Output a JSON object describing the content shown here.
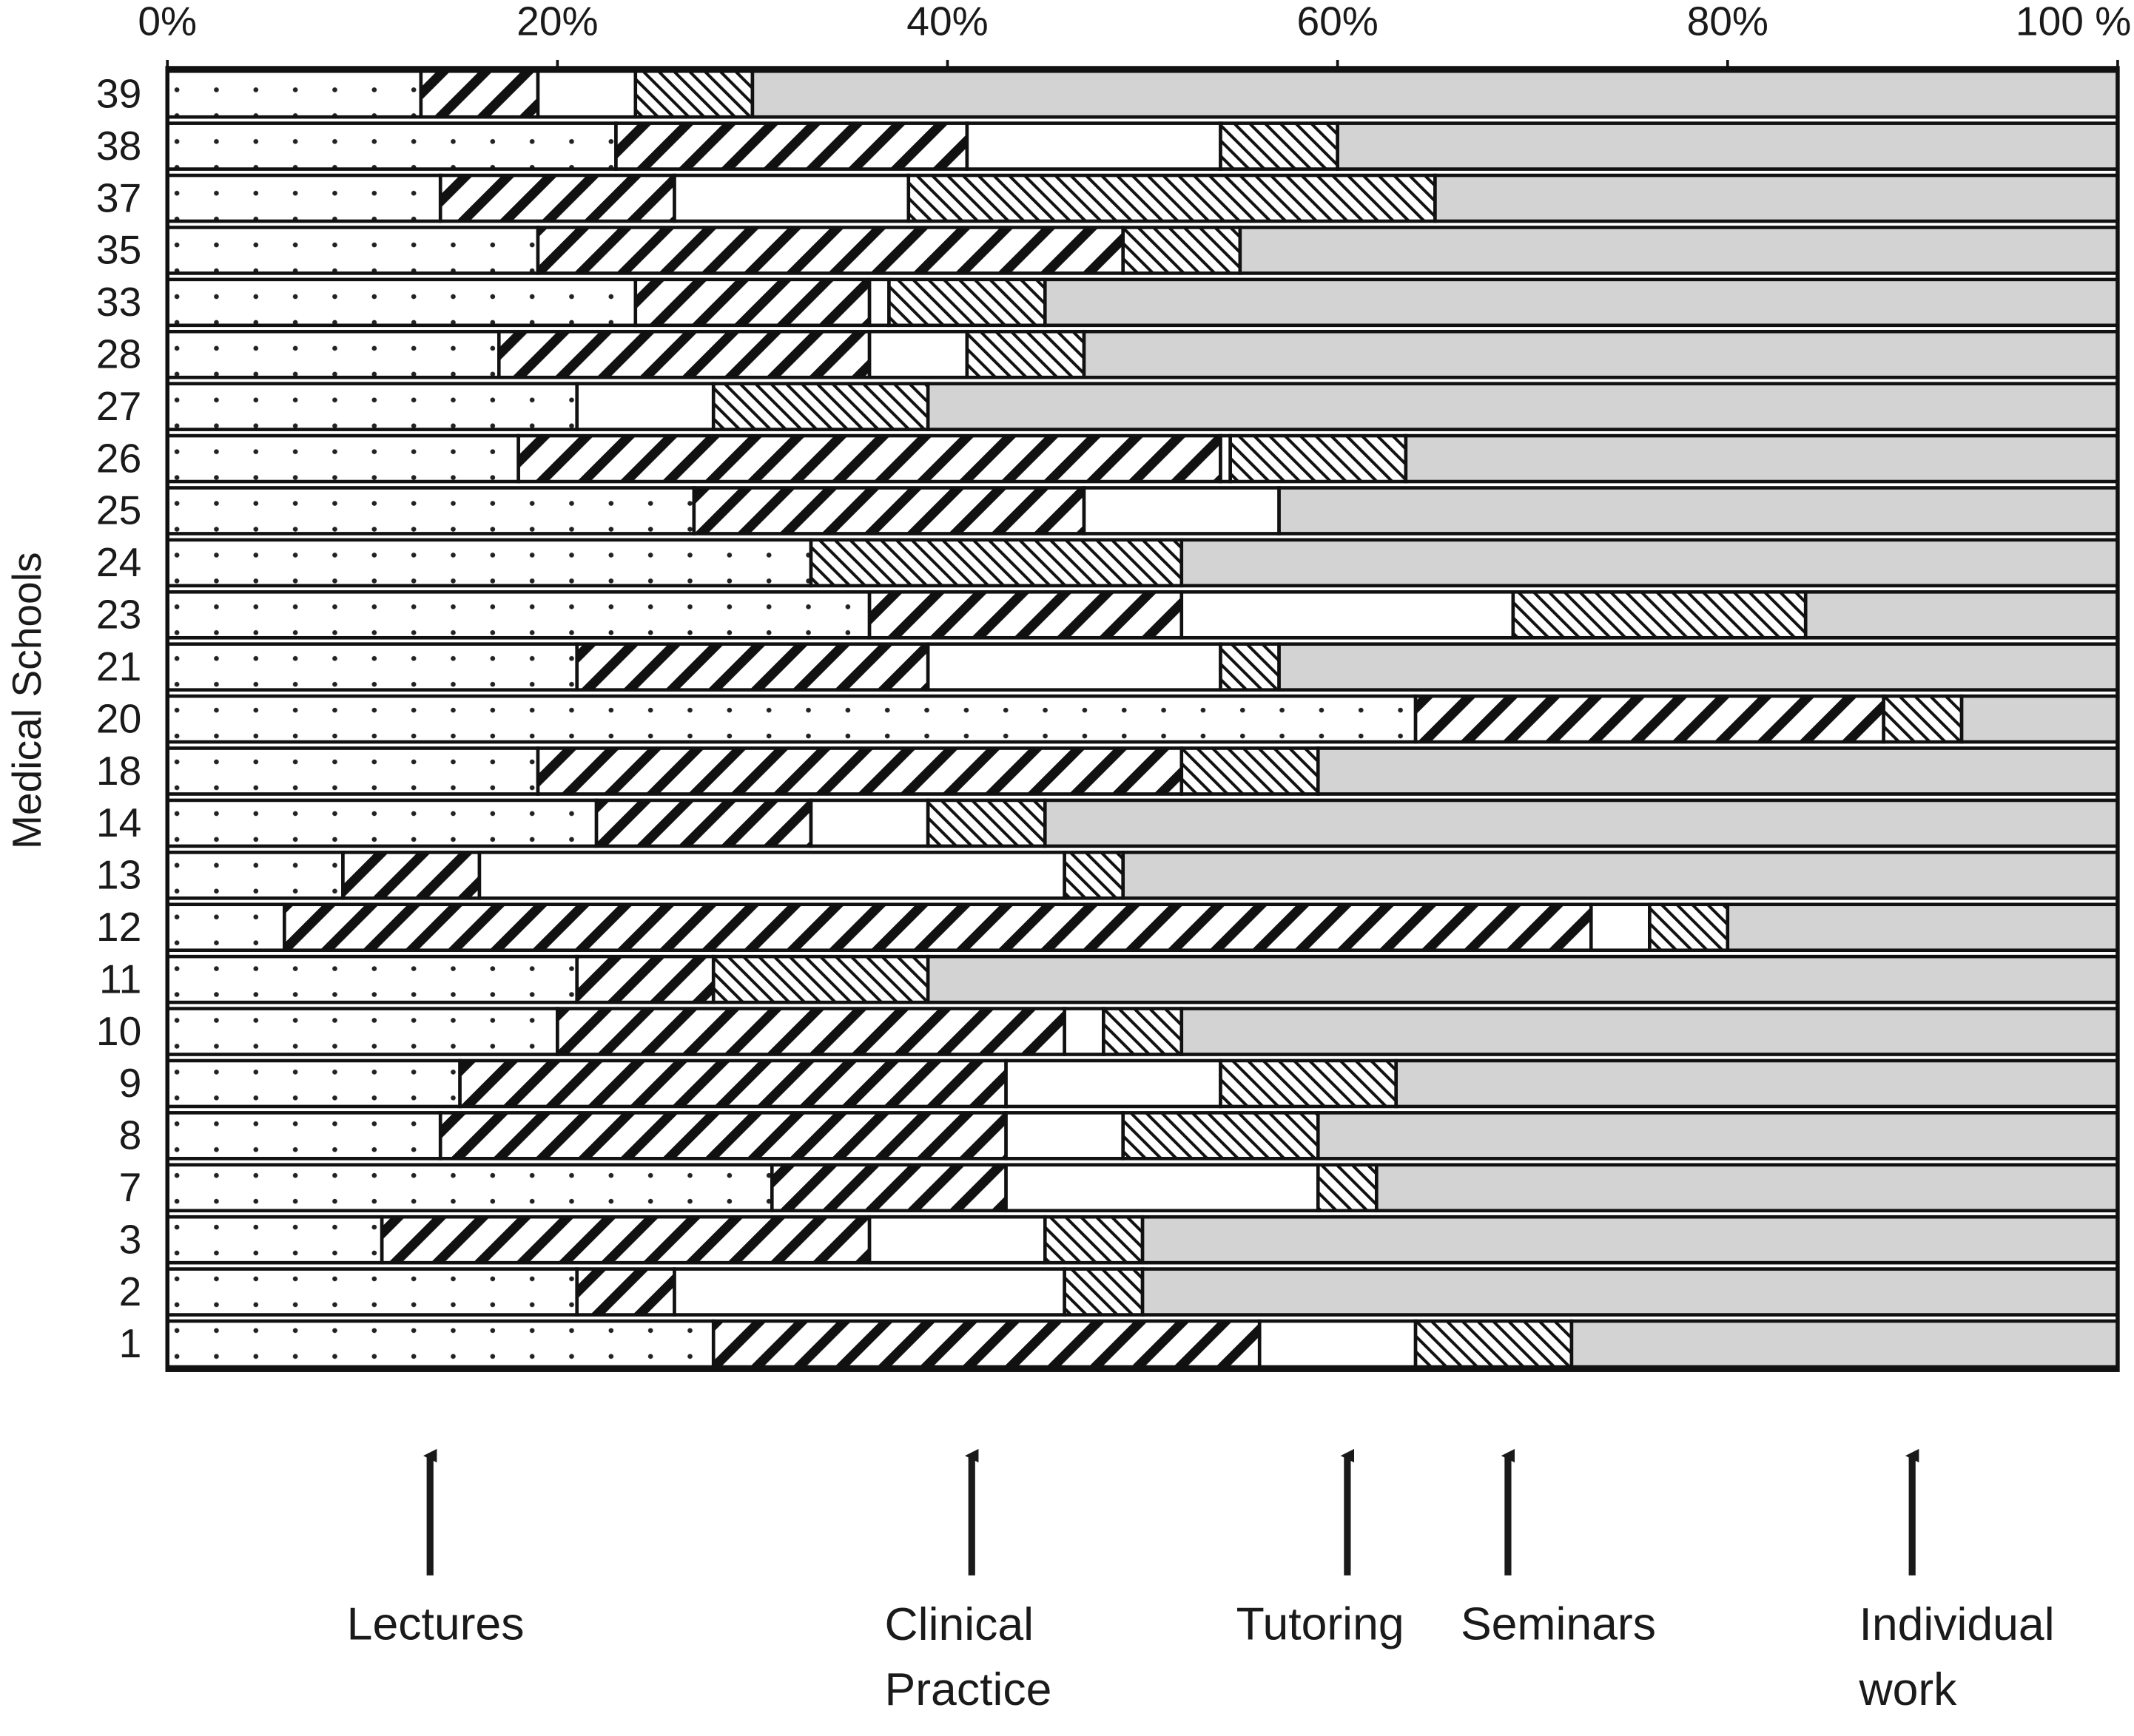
{
  "chart_data": {
    "type": "stacked-bar-horizontal",
    "y_label": "Medical Schools",
    "categories": [
      "1",
      "2",
      "3",
      "7",
      "8",
      "9",
      "10",
      "11",
      "12",
      "13",
      "14",
      "18",
      "20",
      "21",
      "23",
      "24",
      "25",
      "26",
      "27",
      "28",
      "33",
      "35",
      "37",
      "38",
      "39"
    ],
    "series": [
      {
        "name": "Lectures",
        "color": "#ffffff",
        "pattern": "dots",
        "values": [
          28,
          21,
          11,
          31,
          14,
          15,
          20,
          21,
          6,
          9,
          22,
          19,
          64,
          21,
          36,
          33,
          27,
          18,
          21,
          17,
          24,
          19,
          14,
          23,
          13
        ]
      },
      {
        "name": "Clinical Practice",
        "color": "#ffffff",
        "pattern": "wide-diagonal",
        "values": [
          28,
          5,
          25,
          12,
          29,
          28,
          26,
          7,
          67,
          7,
          11,
          33,
          24,
          18,
          16,
          0,
          20,
          36,
          0,
          19,
          12,
          30,
          12,
          18,
          6
        ]
      },
      {
        "name": "Tutoring",
        "color": "#ffffff",
        "pattern": "none",
        "values": [
          8,
          20,
          9,
          16,
          6,
          11,
          2,
          0,
          3,
          30,
          6,
          0,
          0,
          15,
          17,
          0,
          10,
          0.5,
          7,
          5,
          1,
          0,
          12,
          13,
          5
        ]
      },
      {
        "name": "Seminars",
        "color": "#ffffff",
        "pattern": "fine-diagonal",
        "values": [
          8,
          4,
          5,
          3,
          10,
          9,
          4,
          11,
          4,
          3,
          6,
          7,
          4,
          3,
          15,
          19,
          0,
          9,
          11,
          6,
          8,
          6,
          27,
          6,
          6
        ]
      },
      {
        "name": "Individual work",
        "color": "#d3d3d3",
        "pattern": "none",
        "values": [
          28,
          50,
          50,
          38,
          41,
          37,
          48,
          61,
          20,
          51,
          55,
          41,
          8,
          43,
          16,
          48,
          43,
          36.5,
          61,
          53,
          55,
          45,
          35,
          40,
          70
        ]
      }
    ],
    "xlim": [
      0,
      100
    ],
    "xticks": [
      {
        "value": 0,
        "label": "0%"
      },
      {
        "value": 20,
        "label": "20%"
      },
      {
        "value": 40,
        "label": "40%"
      },
      {
        "value": 60,
        "label": "60%"
      },
      {
        "value": 80,
        "label": "80%"
      },
      {
        "value": 100,
        "label": "100 %"
      }
    ],
    "xaxis_position": "top",
    "legend": "arrows-below"
  }
}
